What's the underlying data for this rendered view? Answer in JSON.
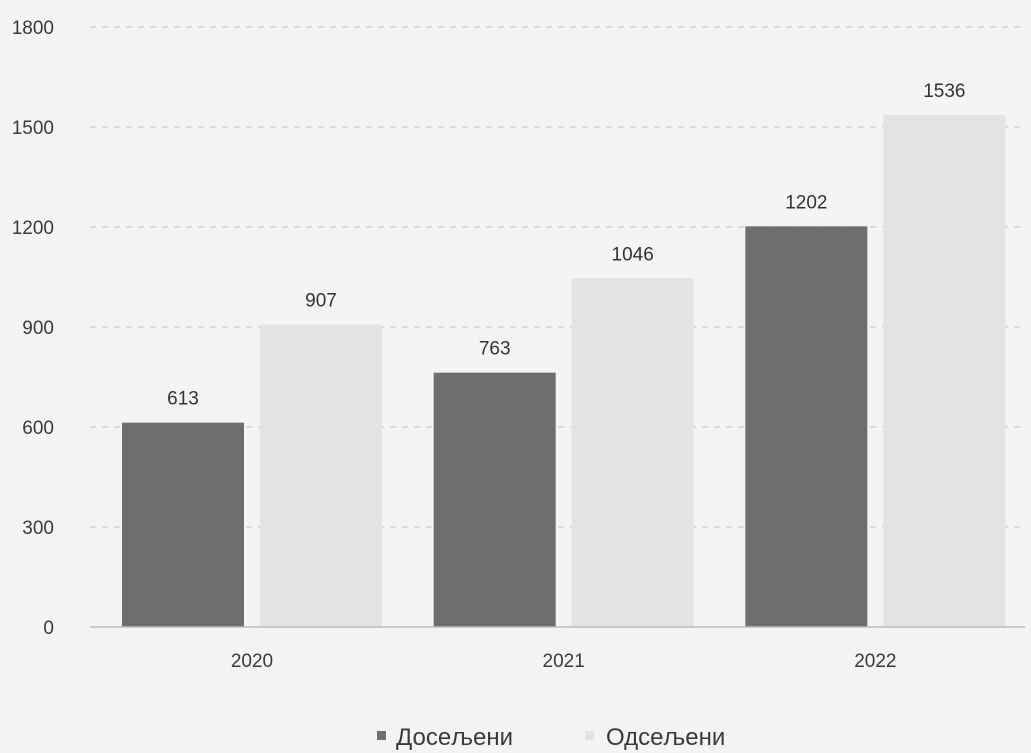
{
  "chart_data": {
    "type": "bar",
    "categories": [
      "2020",
      "2021",
      "2022"
    ],
    "series": [
      {
        "name": "Досељени",
        "values": [
          613,
          763,
          1202
        ],
        "color": "#6e6d70"
      },
      {
        "name": "Одсељени",
        "values": [
          907,
          1046,
          1536
        ],
        "color": "#e3e3e5"
      }
    ],
    "ylim": [
      0,
      1800
    ],
    "yticks": [
      0,
      300,
      600,
      900,
      1200,
      1500,
      1800
    ],
    "grid": true,
    "legend_position": "bottom"
  }
}
